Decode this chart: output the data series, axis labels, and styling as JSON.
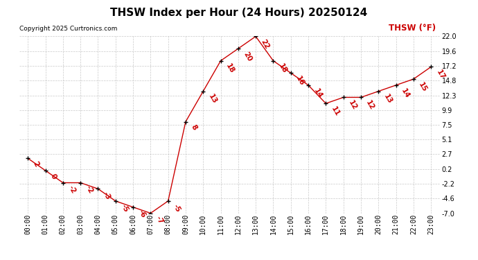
{
  "title": "THSW Index per Hour (24 Hours) 20250124",
  "copyright": "Copyright 2025 Curtronics.com",
  "legend_label": "THSW (°F)",
  "hours": [
    "00:00",
    "01:00",
    "02:00",
    "03:00",
    "04:00",
    "05:00",
    "06:00",
    "07:00",
    "08:00",
    "09:00",
    "10:00",
    "11:00",
    "12:00",
    "13:00",
    "14:00",
    "15:00",
    "16:00",
    "17:00",
    "18:00",
    "19:00",
    "20:00",
    "21:00",
    "22:00",
    "23:00"
  ],
  "values": [
    2,
    0,
    -2,
    -2,
    -3,
    -5,
    -6,
    -7,
    -5,
    8,
    13,
    18,
    20,
    22,
    18,
    16,
    14,
    11,
    12,
    12,
    13,
    14,
    15,
    17
  ],
  "ylim": [
    -7.0,
    22.0
  ],
  "yticks": [
    -7.0,
    -4.6,
    -2.2,
    0.2,
    2.7,
    5.1,
    7.5,
    9.9,
    12.3,
    14.8,
    17.2,
    19.6,
    22.0
  ],
  "line_color": "#cc0000",
  "marker_color": "#000000",
  "label_color": "#cc0000",
  "background_color": "#ffffff",
  "grid_color": "#bbbbbb",
  "title_color": "#000000",
  "copyright_color": "#000000",
  "legend_color": "#cc0000",
  "title_fontsize": 11,
  "tick_fontsize": 7,
  "annotation_fontsize": 7.5
}
